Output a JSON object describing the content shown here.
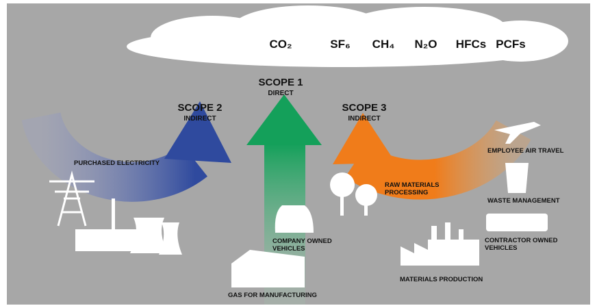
{
  "gases": [
    "CO₂",
    "SF₆",
    "CH₄",
    "N₂O",
    "HFCs",
    "PCFs"
  ],
  "scopes": [
    {
      "title": "SCOPE 2",
      "subtitle": "INDIRECT"
    },
    {
      "title": "SCOPE 1",
      "subtitle": "DIRECT"
    },
    {
      "title": "SCOPE 3",
      "subtitle": "INDIRECT"
    }
  ],
  "sources": [
    {
      "lines": [
        "PURCHASED ELECTRICITY"
      ]
    },
    {
      "lines": [
        "COMPANY OWNED",
        "VEHICLES"
      ]
    },
    {
      "lines": [
        "GAS FOR MANUFACTURING"
      ]
    },
    {
      "lines": [
        "RAW MATERIALS",
        "PROCESSING"
      ]
    },
    {
      "lines": [
        "MATERIALS PRODUCTION"
      ]
    },
    {
      "lines": [
        "EMPLOYEE AIR TRAVEL"
      ]
    },
    {
      "lines": [
        "WASTE MANAGEMENT"
      ]
    },
    {
      "lines": [
        "CONTRACTOR OWNED",
        "VEHICLES"
      ]
    }
  ]
}
